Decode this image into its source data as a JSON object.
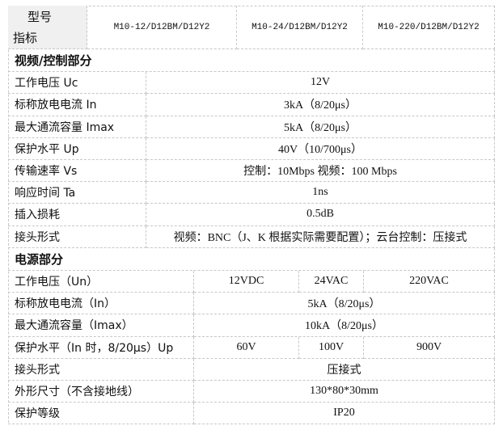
{
  "header": {
    "label_top": "型号",
    "label_bottom": "指标",
    "models": [
      "M10-12/D12BM/D12Y2",
      "M10-24/D12BM/D12Y2",
      "M10-220/D12BM/D12Y2"
    ]
  },
  "sections": [
    {
      "title": "视频/控制部分",
      "rows": [
        {
          "label": "工作电压 Uc",
          "values": [
            "12V"
          ]
        },
        {
          "label": "标称放电电流 In",
          "values": [
            "3kA（8/20μs）"
          ]
        },
        {
          "label": "最大通流容量 Imax",
          "values": [
            "5kA（8/20μs）"
          ]
        },
        {
          "label": "保护水平 Up",
          "values": [
            "40V（10/700μs）"
          ]
        },
        {
          "label": "传输速率 Vs",
          "values": [
            "控制：10Mbps   视频：100 Mbps"
          ]
        },
        {
          "label": "响应时间 Ta",
          "values": [
            "1ns"
          ]
        },
        {
          "label": "插入损耗",
          "values": [
            "0.5dB"
          ]
        },
        {
          "label": "接头形式",
          "values": [
            "视频：BNC（J、K 根据实际需要配置）；云台控制：压接式"
          ]
        }
      ]
    },
    {
      "title": "电源部分",
      "rows": [
        {
          "label": "工作电压（Un）",
          "values": [
            "12VDC",
            "24VAC",
            "220VAC"
          ]
        },
        {
          "label": "标称放电电流（In）",
          "values": [
            "5kA（8/20μs）"
          ]
        },
        {
          "label": "最大通流容量（Imax）",
          "values": [
            "10kA（8/20μs）"
          ]
        },
        {
          "label": "保护水平（In 时，8/20μs）Up",
          "values": [
            "60V",
            "100V",
            "900V"
          ]
        },
        {
          "label": "接头形式",
          "values": [
            "压接式"
          ]
        },
        {
          "label": "外形尺寸（不含接地线）",
          "values": [
            "130*80*30mm"
          ]
        },
        {
          "label": "保护等级",
          "values": [
            "IP20"
          ]
        }
      ]
    }
  ]
}
